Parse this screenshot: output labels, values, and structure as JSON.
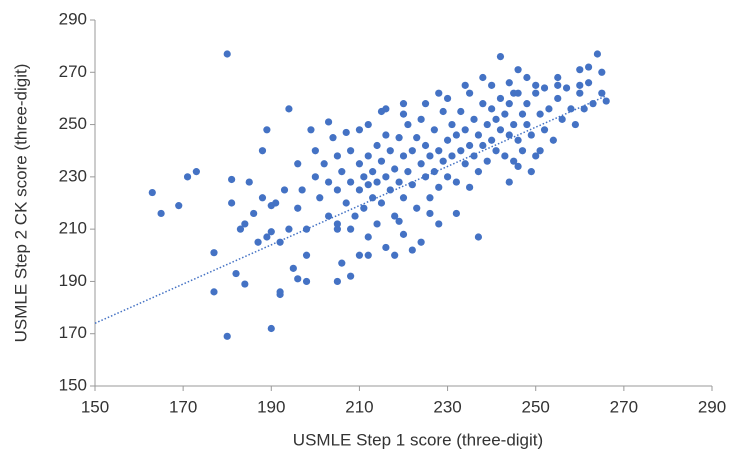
{
  "chart_data": {
    "type": "scatter",
    "x_label": "USMLE Step 1 score (three-digit)",
    "y_label": "USMLE Step 2 CK score (three-digit)",
    "xlim": [
      150,
      290
    ],
    "xticks": [
      150,
      170,
      190,
      210,
      230,
      250,
      270,
      290
    ],
    "ylim": [
      150,
      290
    ],
    "yticks": [
      150,
      170,
      190,
      210,
      230,
      250,
      270,
      290
    ],
    "grid": false,
    "series": [
      {
        "color": "#4472c4",
        "x": [
          163,
          165,
          169,
          171,
          173,
          177,
          177,
          180,
          180,
          181,
          181,
          182,
          184,
          184,
          187,
          188,
          189,
          190,
          190,
          191,
          192,
          192,
          194,
          188,
          190,
          193,
          195,
          196,
          198,
          205,
          206,
          208,
          212,
          218,
          222,
          237,
          219,
          226,
          242,
          264,
          262,
          265,
          260,
          255,
          246,
          244,
          248,
          238,
          234,
          216,
          220,
          228,
          200,
          200,
          201,
          202,
          203,
          203,
          204,
          205,
          205,
          205,
          206,
          207,
          208,
          208,
          209,
          210,
          210,
          210,
          211,
          211,
          212,
          212,
          213,
          213,
          214,
          214,
          215,
          215,
          216,
          216,
          217,
          217,
          218,
          218,
          219,
          219,
          220,
          220,
          221,
          221,
          222,
          222,
          223,
          223,
          224,
          224,
          225,
          225,
          226,
          226,
          227,
          227,
          228,
          228,
          229,
          229,
          230,
          230,
          231,
          231,
          232,
          232,
          233,
          233,
          234,
          234,
          235,
          235,
          236,
          236,
          237,
          237,
          238,
          238,
          239,
          239,
          240,
          240,
          241,
          241,
          242,
          242,
          243,
          243,
          244,
          244,
          245,
          245,
          246,
          246,
          247,
          247,
          248,
          248,
          249,
          250,
          250,
          251,
          252,
          252,
          253,
          254,
          255,
          256,
          257,
          258,
          259,
          260,
          261,
          262,
          263,
          265,
          266,
          251,
          249,
          246,
          244,
          232,
          228,
          224,
          220,
          216,
          214,
          212,
          208,
          205,
          210,
          198,
          197,
          196,
          199,
          203,
          207,
          212,
          215,
          220,
          225,
          230,
          235,
          240,
          245,
          250,
          255,
          260,
          192,
          194,
          196,
          198,
          186,
          189,
          185,
          183
        ],
        "values": [
          224,
          216,
          219,
          230,
          232,
          201,
          186,
          277,
          169,
          229,
          220,
          193,
          189,
          212,
          205,
          240,
          248,
          172,
          209,
          220,
          186,
          185,
          256,
          222,
          219,
          225,
          195,
          191,
          190,
          190,
          197,
          192,
          200,
          200,
          202,
          207,
          213,
          216,
          276,
          277,
          272,
          270,
          271,
          268,
          271,
          266,
          268,
          268,
          265,
          256,
          258,
          262,
          240,
          230,
          222,
          235,
          215,
          228,
          245,
          238,
          225,
          210,
          232,
          220,
          240,
          228,
          215,
          235,
          225,
          248,
          230,
          218,
          238,
          227,
          232,
          222,
          242,
          228,
          236,
          220,
          230,
          246,
          240,
          225,
          233,
          215,
          228,
          245,
          238,
          222,
          232,
          250,
          240,
          227,
          245,
          218,
          235,
          252,
          230,
          242,
          238,
          222,
          248,
          232,
          240,
          226,
          255,
          236,
          244,
          230,
          250,
          238,
          228,
          246,
          240,
          255,
          235,
          248,
          242,
          226,
          252,
          238,
          246,
          232,
          258,
          242,
          250,
          236,
          256,
          244,
          240,
          252,
          260,
          248,
          238,
          254,
          246,
          258,
          250,
          236,
          262,
          244,
          254,
          240,
          250,
          258,
          246,
          262,
          238,
          254,
          248,
          264,
          256,
          244,
          260,
          252,
          264,
          256,
          250,
          262,
          256,
          266,
          258,
          262,
          259,
          240,
          232,
          234,
          228,
          216,
          212,
          205,
          208,
          203,
          212,
          207,
          210,
          212,
          200,
          210,
          225,
          235,
          248,
          251,
          247,
          250,
          255,
          254,
          258,
          260,
          262,
          265,
          262,
          265,
          265,
          265,
          205,
          210,
          218,
          200,
          216,
          207,
          228,
          210
        ]
      }
    ],
    "trendline": {
      "x": [
        150,
        266
      ],
      "values": [
        174,
        261
      ],
      "color": "#4472c4"
    }
  }
}
